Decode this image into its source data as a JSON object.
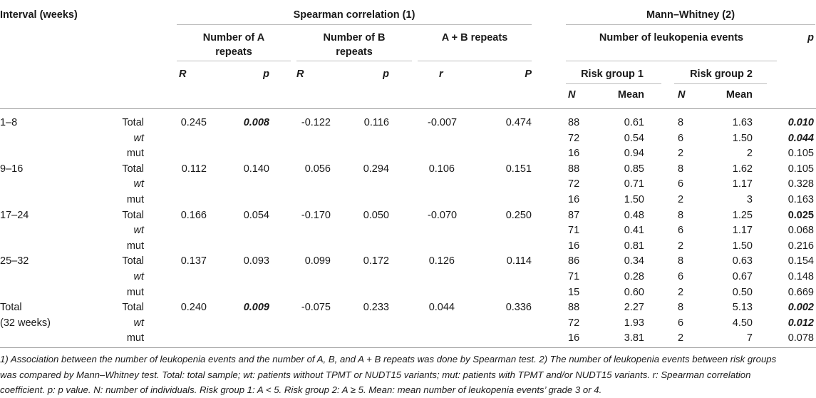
{
  "headers": {
    "interval": "Interval (weeks)",
    "spearman": "Spearman correlation (1)",
    "mann": "Mann–Whitney (2)",
    "num_a_1": "Number of A",
    "num_a_2": "repeats",
    "num_b_1": "Number of B",
    "num_b_2": "repeats",
    "ab": "A + B repeats",
    "leuk": "Number of leukopenia events",
    "p_mw": "p",
    "R_a": "R",
    "p_a": "p",
    "R_b": "R",
    "p_b": "p",
    "r_ab": "r",
    "P_ab": "P",
    "rg1": "Risk group 1",
    "rg2": "Risk group 2",
    "N1": "N",
    "mean1": "Mean",
    "N2": "N",
    "mean2": "Mean"
  },
  "rows": [
    {
      "interval": "1–8",
      "group": "Total",
      "ra": "0.245",
      "pa": "0.008",
      "rb": "-0.122",
      "pb": "0.116",
      "rab": "-0.007",
      "pab": "0.474",
      "n1": "88",
      "m1": "0.61",
      "n2": "8",
      "m2": "1.63",
      "p": "0.010"
    },
    {
      "interval": "",
      "group": "wt",
      "ra": "",
      "pa": "",
      "rb": "",
      "pb": "",
      "rab": "",
      "pab": "",
      "n1": "72",
      "m1": "0.54",
      "n2": "6",
      "m2": "1.50",
      "p": "0.044"
    },
    {
      "interval": "",
      "group": "mut",
      "ra": "",
      "pa": "",
      "rb": "",
      "pb": "",
      "rab": "",
      "pab": "",
      "n1": "16",
      "m1": "0.94",
      "n2": "2",
      "m2": "2",
      "p": "0.105"
    },
    {
      "interval": "9–16",
      "group": "Total",
      "ra": "0.112",
      "pa": "0.140",
      "rb": "0.056",
      "pb": "0.294",
      "rab": "0.106",
      "pab": "0.151",
      "n1": "88",
      "m1": "0.85",
      "n2": "8",
      "m2": "1.62",
      "p": "0.105"
    },
    {
      "interval": "",
      "group": "wt",
      "ra": "",
      "pa": "",
      "rb": "",
      "pb": "",
      "rab": "",
      "pab": "",
      "n1": "72",
      "m1": "0.71",
      "n2": "6",
      "m2": "1.17",
      "p": "0.328"
    },
    {
      "interval": "",
      "group": "mut",
      "ra": "",
      "pa": "",
      "rb": "",
      "pb": "",
      "rab": "",
      "pab": "",
      "n1": "16",
      "m1": "1.50",
      "n2": "2",
      "m2": "3",
      "p": "0.163"
    },
    {
      "interval": "17–24",
      "group": "Total",
      "ra": "0.166",
      "pa": "0.054",
      "rb": "-0.170",
      "pb": "0.050",
      "rab": "-0.070",
      "pab": "0.250",
      "n1": "87",
      "m1": "0.48",
      "n2": "8",
      "m2": "1.25",
      "p": "0.025"
    },
    {
      "interval": "",
      "group": "wt",
      "ra": "",
      "pa": "",
      "rb": "",
      "pb": "",
      "rab": "",
      "pab": "",
      "n1": "71",
      "m1": "0.41",
      "n2": "6",
      "m2": "1.17",
      "p": "0.068"
    },
    {
      "interval": "",
      "group": "mut",
      "ra": "",
      "pa": "",
      "rb": "",
      "pb": "",
      "rab": "",
      "pab": "",
      "n1": "16",
      "m1": "0.81",
      "n2": "2",
      "m2": "1.50",
      "p": "0.216"
    },
    {
      "interval": "25–32",
      "group": "Total",
      "ra": "0.137",
      "pa": "0.093",
      "rb": "0.099",
      "pb": "0.172",
      "rab": "0.126",
      "pab": "0.114",
      "n1": "86",
      "m1": "0.34",
      "n2": "8",
      "m2": "0.63",
      "p": "0.154"
    },
    {
      "interval": "",
      "group": "wt",
      "ra": "",
      "pa": "",
      "rb": "",
      "pb": "",
      "rab": "",
      "pab": "",
      "n1": "71",
      "m1": "0.28",
      "n2": "6",
      "m2": "0.67",
      "p": "0.148"
    },
    {
      "interval": "",
      "group": "mut",
      "ra": "",
      "pa": "",
      "rb": "",
      "pb": "",
      "rab": "",
      "pab": "",
      "n1": "15",
      "m1": "0.60",
      "n2": "2",
      "m2": "0.50",
      "p": "0.669"
    },
    {
      "interval": "Total",
      "group": "Total",
      "ra": "0.240",
      "pa": "0.009",
      "rb": "-0.075",
      "pb": "0.233",
      "rab": "0.044",
      "pab": "0.336",
      "n1": "88",
      "m1": "2.27",
      "n2": "8",
      "m2": "5.13",
      "p": "0.002"
    },
    {
      "interval": "(32 weeks)",
      "group": "wt",
      "ra": "",
      "pa": "",
      "rb": "",
      "pb": "",
      "rab": "",
      "pab": "",
      "n1": "72",
      "m1": "1.93",
      "n2": "6",
      "m2": "4.50",
      "p": "0.012"
    },
    {
      "interval": "",
      "group": "mut",
      "ra": "",
      "pa": "",
      "rb": "",
      "pb": "",
      "rab": "",
      "pab": "",
      "n1": "16",
      "m1": "3.81",
      "n2": "2",
      "m2": "7",
      "p": "0.078"
    }
  ],
  "footnote_lines": [
    "1) Association between the number of leukopenia events and the number of A, B, and A + B repeats was done by Spearman test. 2) The number of leukopenia events between risk groups",
    "was compared by Mann–Whitney test. Total: total sample; wt: patients without TPMT or NUDT15 variants; mut: patients with TPMT and/or NUDT15 variants. r: Spearman correlation",
    "coefficient. p: p value. N: number of individuals. Risk group 1: A < 5. Risk group 2: A ≥ 5. Mean: mean number of leukopenia events’ grade 3 or 4."
  ]
}
